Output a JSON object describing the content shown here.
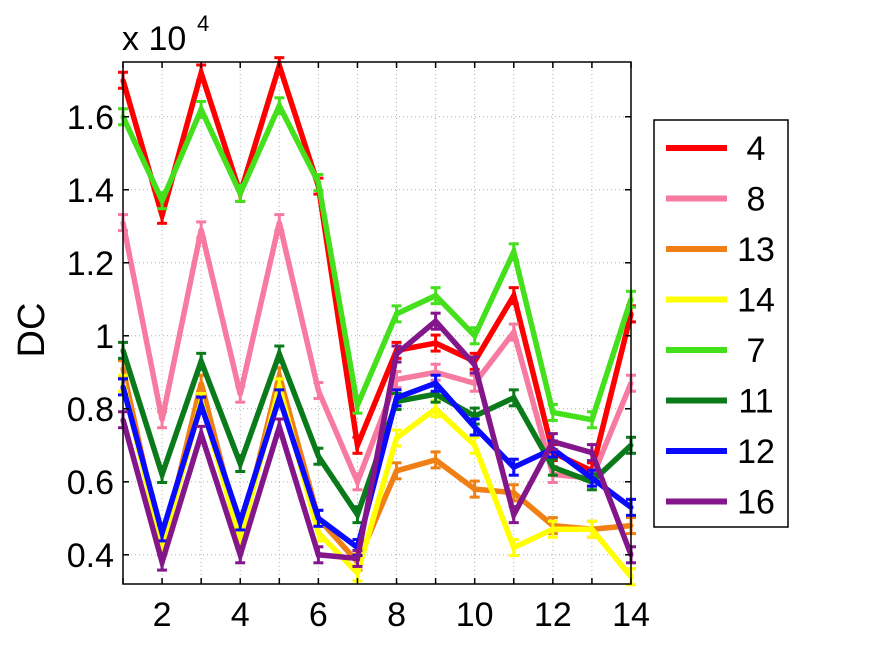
{
  "chart_data": {
    "type": "line",
    "title": "",
    "xlabel": "",
    "ylabel": "DC",
    "multiplier_base": "x 10",
    "multiplier_exponent": "4",
    "xlim": [
      1,
      14
    ],
    "ylim": [
      0.32,
      1.75
    ],
    "x": [
      1,
      2,
      3,
      4,
      5,
      6,
      7,
      8,
      9,
      10,
      11,
      12,
      13,
      14
    ],
    "xticks": [
      2,
      4,
      6,
      8,
      10,
      12,
      14
    ],
    "xtick_labels": [
      "2",
      "4",
      "6",
      "8",
      "10",
      "12",
      "14"
    ],
    "yticks": [
      0.4,
      0.6,
      0.8,
      1.0,
      1.2,
      1.4,
      1.6
    ],
    "ytick_labels": [
      "0.4",
      "0.6",
      "0.8",
      "1",
      "1.2",
      "1.4",
      "1.6"
    ],
    "grid": true,
    "legend_position": "right",
    "series": [
      {
        "name": "4",
        "color": "#ff0000",
        "values": [
          1.7,
          1.33,
          1.72,
          1.39,
          1.74,
          1.41,
          0.7,
          0.96,
          0.98,
          0.93,
          1.11,
          0.68,
          0.63,
          1.06
        ]
      },
      {
        "name": "8",
        "color": "#f77aa0",
        "values": [
          1.31,
          0.77,
          1.29,
          0.84,
          1.31,
          0.85,
          0.6,
          0.88,
          0.9,
          0.87,
          1.01,
          0.62,
          0.61,
          0.87
        ]
      },
      {
        "name": "13",
        "color": "#f07f14",
        "values": [
          0.91,
          0.42,
          0.87,
          0.45,
          0.89,
          0.5,
          0.38,
          0.63,
          0.66,
          0.58,
          0.57,
          0.48,
          0.47,
          0.48
        ]
      },
      {
        "name": "14",
        "color": "#ffff00",
        "values": [
          0.87,
          0.42,
          0.82,
          0.44,
          0.86,
          0.46,
          0.35,
          0.72,
          0.8,
          0.7,
          0.42,
          0.47,
          0.47,
          0.34
        ]
      },
      {
        "name": "7",
        "color": "#44e01c",
        "values": [
          1.6,
          1.37,
          1.62,
          1.39,
          1.63,
          1.42,
          0.81,
          1.06,
          1.11,
          1.0,
          1.23,
          0.79,
          0.77,
          1.1
        ]
      },
      {
        "name": "11",
        "color": "#0a7a1a",
        "values": [
          0.96,
          0.62,
          0.93,
          0.65,
          0.95,
          0.67,
          0.51,
          0.82,
          0.84,
          0.78,
          0.83,
          0.64,
          0.6,
          0.7
        ]
      },
      {
        "name": "12",
        "color": "#0a0aff",
        "values": [
          0.86,
          0.46,
          0.81,
          0.49,
          0.83,
          0.5,
          0.42,
          0.83,
          0.87,
          0.75,
          0.64,
          0.69,
          0.61,
          0.53
        ]
      },
      {
        "name": "16",
        "color": "#84168c",
        "values": [
          0.77,
          0.38,
          0.73,
          0.4,
          0.75,
          0.4,
          0.39,
          0.95,
          1.04,
          0.92,
          0.51,
          0.71,
          0.68,
          0.4
        ]
      }
    ]
  }
}
